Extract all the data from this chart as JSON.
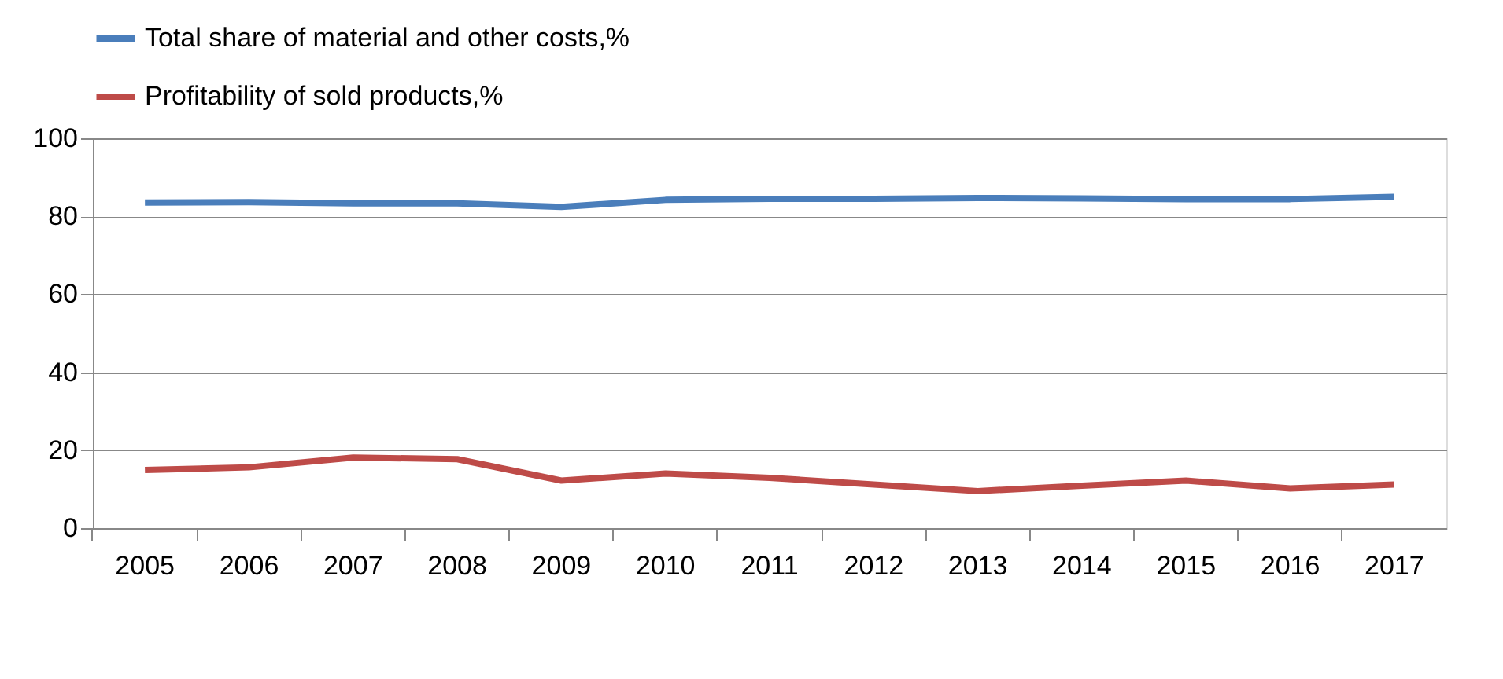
{
  "chart_data": {
    "type": "line",
    "categories": [
      "2005",
      "2006",
      "2007",
      "2008",
      "2009",
      "2010",
      "2011",
      "2012",
      "2013",
      "2014",
      "2015",
      "2016",
      "2017"
    ],
    "series": [
      {
        "name": "Total share of material and other costs,%",
        "color": "#4a7ebb",
        "values": [
          83.5,
          83.6,
          83.3,
          83.3,
          82.4,
          84.2,
          84.5,
          84.5,
          84.7,
          84.6,
          84.4,
          84.4,
          85.0
        ]
      },
      {
        "name": "Profitability of sold products,%",
        "color": "#be4b48",
        "values": [
          14.9,
          15.6,
          18.1,
          17.7,
          12.2,
          14.0,
          12.9,
          11.2,
          9.5,
          10.9,
          12.2,
          10.2,
          11.2
        ]
      }
    ],
    "ylim": [
      0,
      100
    ],
    "yticks": [
      0,
      20,
      40,
      60,
      80,
      100
    ],
    "grid": "y",
    "legend": "top",
    "marker": "none",
    "line_style": "solid"
  }
}
